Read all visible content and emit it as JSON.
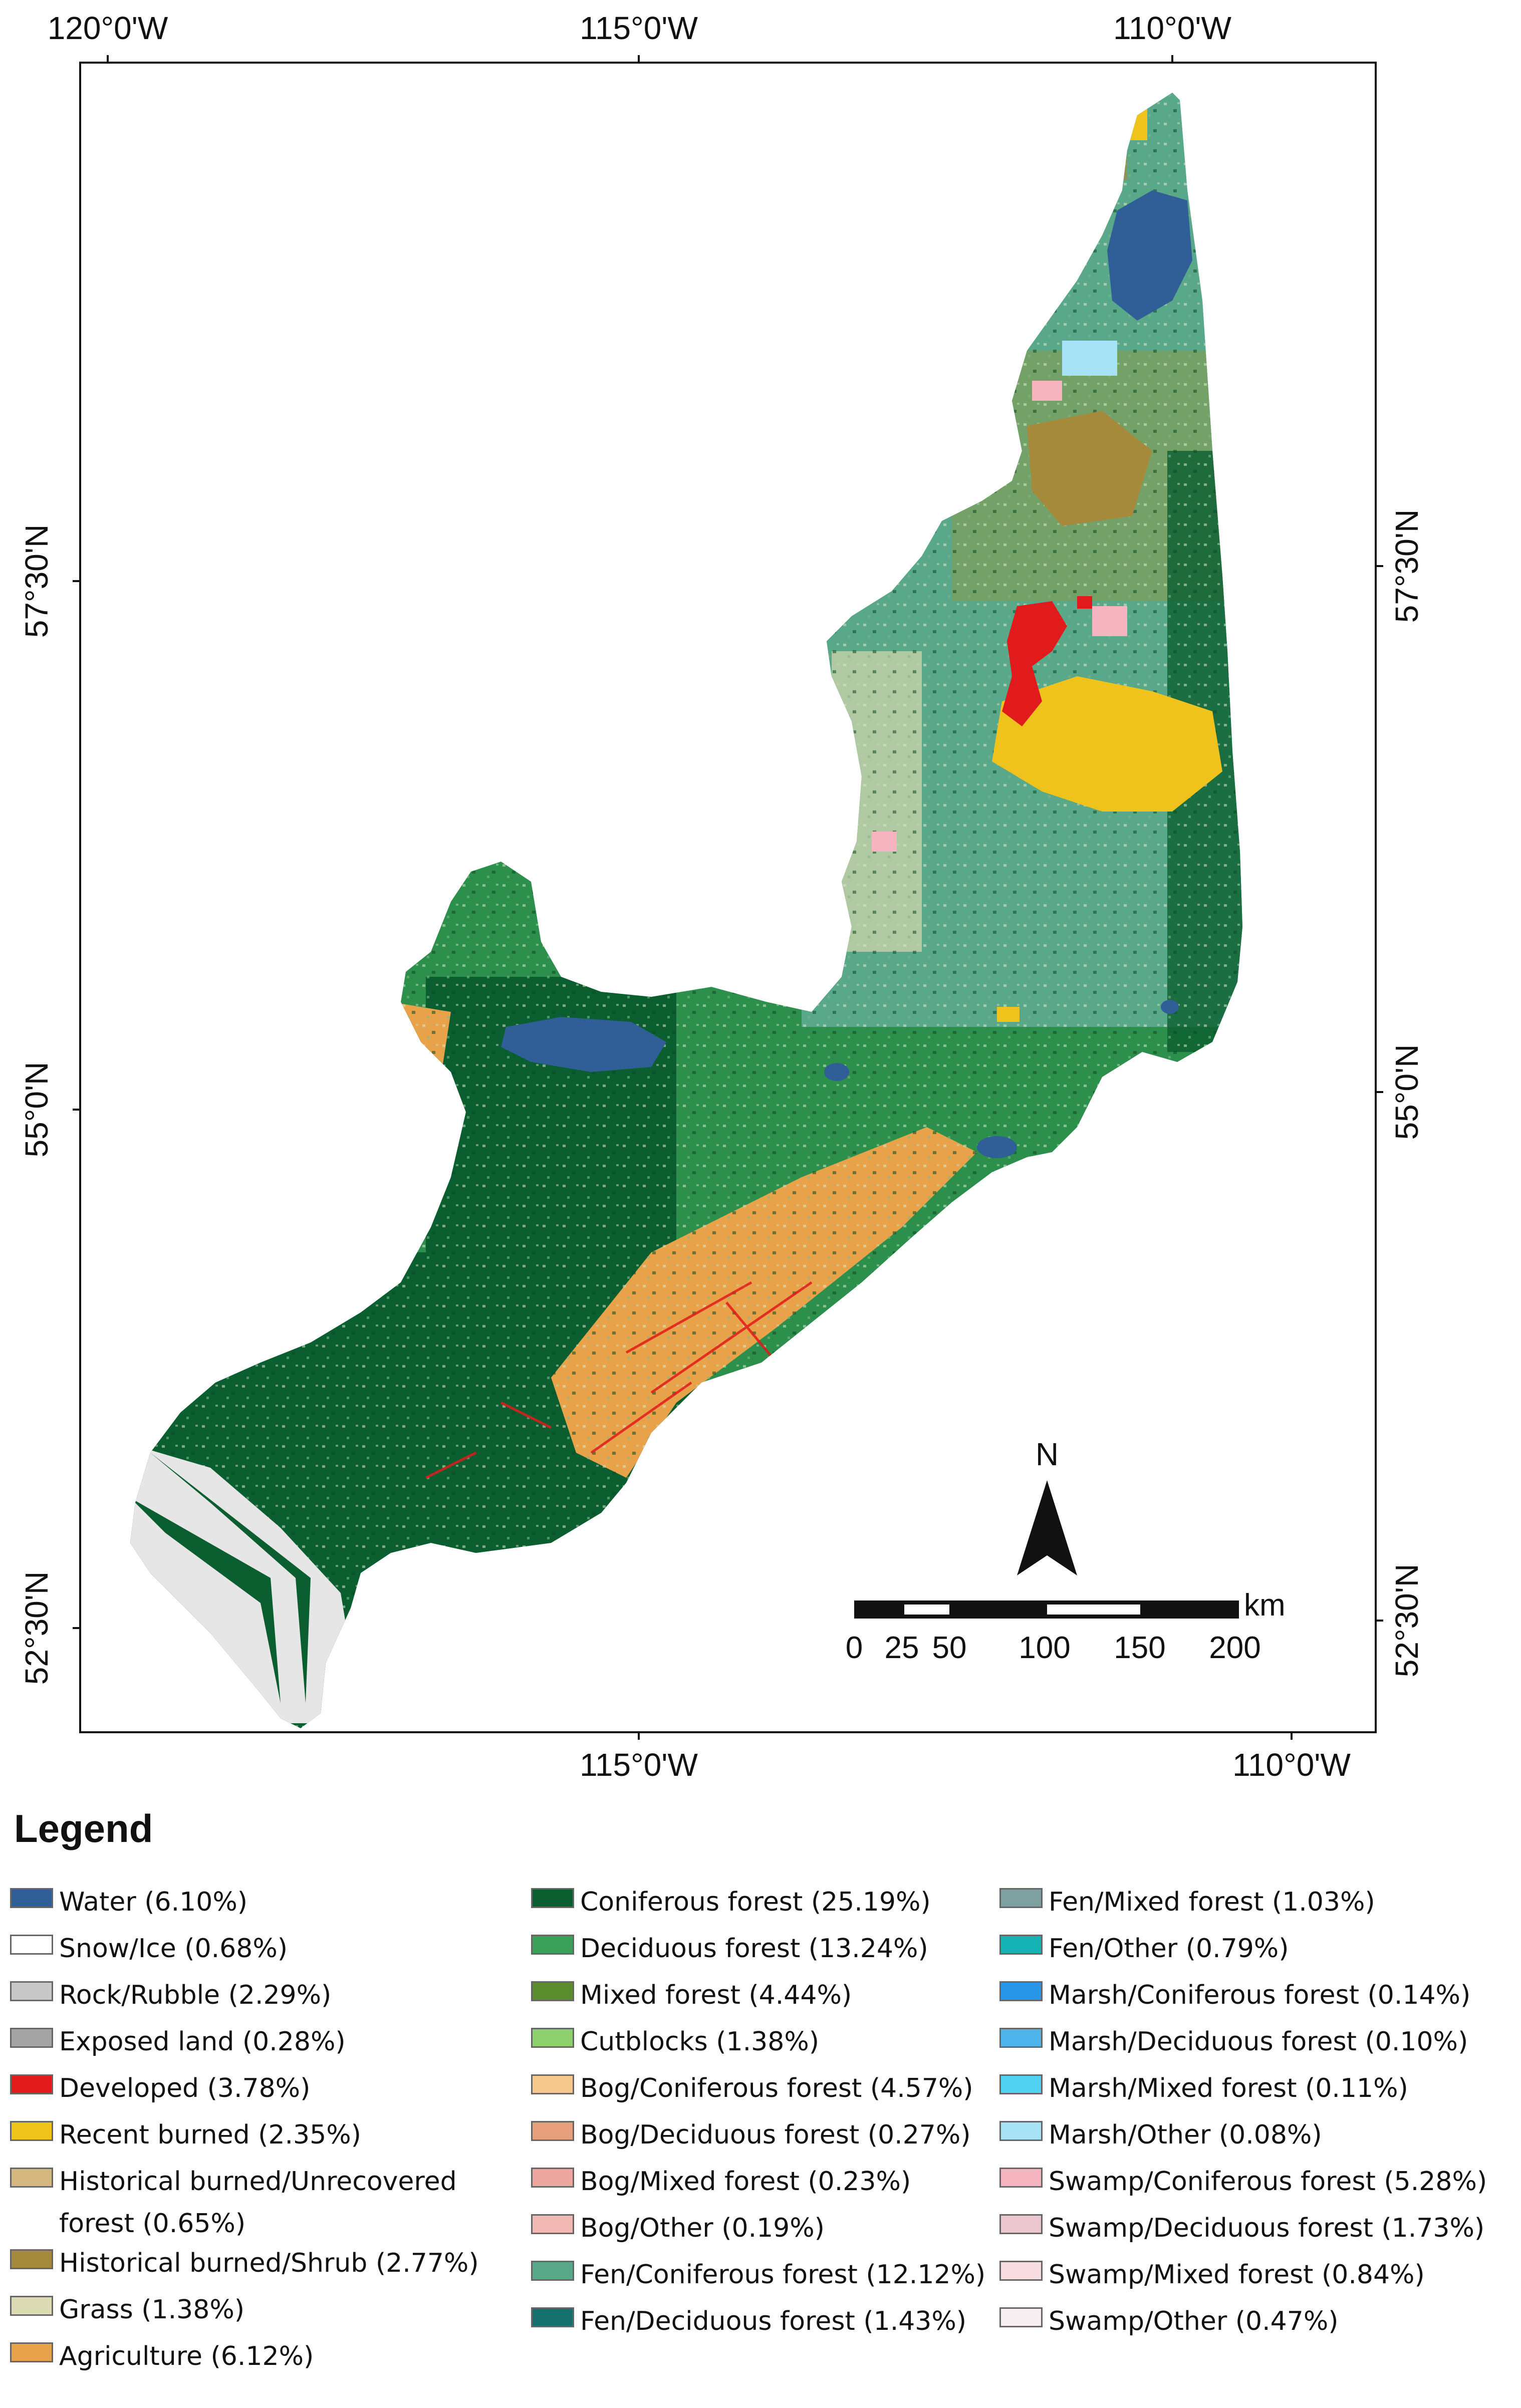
{
  "map": {
    "lon_top": [
      {
        "id": "top-120",
        "label": "120°0'W"
      },
      {
        "id": "top-115",
        "label": "115°0'W"
      },
      {
        "id": "top-110",
        "label": "110°0'W"
      }
    ],
    "lon_bottom": [
      {
        "id": "bot-115",
        "label": "115°0'W"
      },
      {
        "id": "bot-110",
        "label": "110°0'W"
      }
    ],
    "lat_left": [
      {
        "id": "left-5730",
        "label": "57°30'N"
      },
      {
        "id": "left-55",
        "label": "55°0'N"
      },
      {
        "id": "left-5230",
        "label": "52°30'N"
      }
    ],
    "lat_right": [
      {
        "id": "right-5730",
        "label": "57°30'N"
      },
      {
        "id": "right-55",
        "label": "55°0'N"
      },
      {
        "id": "right-5230",
        "label": "52°30'N"
      }
    ],
    "north_arrow": {
      "label": "N"
    },
    "scale_bar": {
      "unit": "km",
      "ticks": [
        "0",
        "25",
        "50",
        "100",
        "150",
        "200"
      ]
    },
    "colors": {
      "coniferous": "#0b5e30",
      "deciduous": "#3aa05a",
      "agriculture": "#e8a24a",
      "water": "#2f5f96",
      "developed": "#e11b1b",
      "recent_burned": "#f0c21c",
      "historical_shrub": "#a68a3c",
      "fen_coniferous": "#5aa88a",
      "bog_coniferous": "#f5c98c"
    }
  },
  "legend": {
    "title": "Legend",
    "items": [
      {
        "label": "Water (6.10%)",
        "color": "#2f5f96"
      },
      {
        "label": "Snow/Ice (0.68%)",
        "color": "#ffffff"
      },
      {
        "label": "Rock/Rubble (2.29%)",
        "color": "#c8c8c8"
      },
      {
        "label": "Exposed land (0.28%)",
        "color": "#a4a4a4"
      },
      {
        "label": "Developed (3.78%)",
        "color": "#e11b1b"
      },
      {
        "label": "Recent burned (2.35%)",
        "color": "#f0c21c"
      },
      {
        "label": "Historical burned/Unrecovered forest (0.65%)",
        "color": "#d4b87f"
      },
      {
        "label": "Historical burned/Shrub (2.77%)",
        "color": "#a68a3c"
      },
      {
        "label": "Grass (1.38%)",
        "color": "#dcdcb4"
      },
      {
        "label": "Agriculture (6.12%)",
        "color": "#e8a24a"
      },
      {
        "label": "Coniferous forest (25.19%)",
        "color": "#0b5e30"
      },
      {
        "label": "Deciduous forest (13.24%)",
        "color": "#3aa05a"
      },
      {
        "label": "Mixed forest (4.44%)",
        "color": "#5a8c2e"
      },
      {
        "label": "Cutblocks (1.38%)",
        "color": "#8fd06e"
      },
      {
        "label": "Bog/Coniferous forest (4.57%)",
        "color": "#f5c98c"
      },
      {
        "label": "Bog/Deciduous forest (0.27%)",
        "color": "#e8a07c"
      },
      {
        "label": "Bog/Mixed forest (0.23%)",
        "color": "#eea6a0"
      },
      {
        "label": "Bog/Other (0.19%)",
        "color": "#f2b8b4"
      },
      {
        "label": "Fen/Coniferous forest (12.12%)",
        "color": "#5aa88a"
      },
      {
        "label": "Fen/Deciduous forest (1.43%)",
        "color": "#15706e"
      },
      {
        "label": "Fen/Mixed forest (1.03%)",
        "color": "#7fa0a0"
      },
      {
        "label": "Fen/Other (0.79%)",
        "color": "#14b4b4"
      },
      {
        "label": "Marsh/Coniferous forest (0.14%)",
        "color": "#2896e6"
      },
      {
        "label": "Marsh/Deciduous forest (0.10%)",
        "color": "#50b4ec"
      },
      {
        "label": "Marsh/Mixed forest (0.11%)",
        "color": "#50d2f0"
      },
      {
        "label": "Marsh/Other (0.08%)",
        "color": "#a8e2f6"
      },
      {
        "label": "Swamp/Coniferous forest (5.28%)",
        "color": "#f6b4c0"
      },
      {
        "label": "Swamp/Deciduous forest (1.73%)",
        "color": "#ecc6cf"
      },
      {
        "label": "Swamp/Mixed forest (0.84%)",
        "color": "#f8dde2"
      },
      {
        "label": "Swamp/Other (0.47%)",
        "color": "#f6eef0"
      }
    ]
  }
}
